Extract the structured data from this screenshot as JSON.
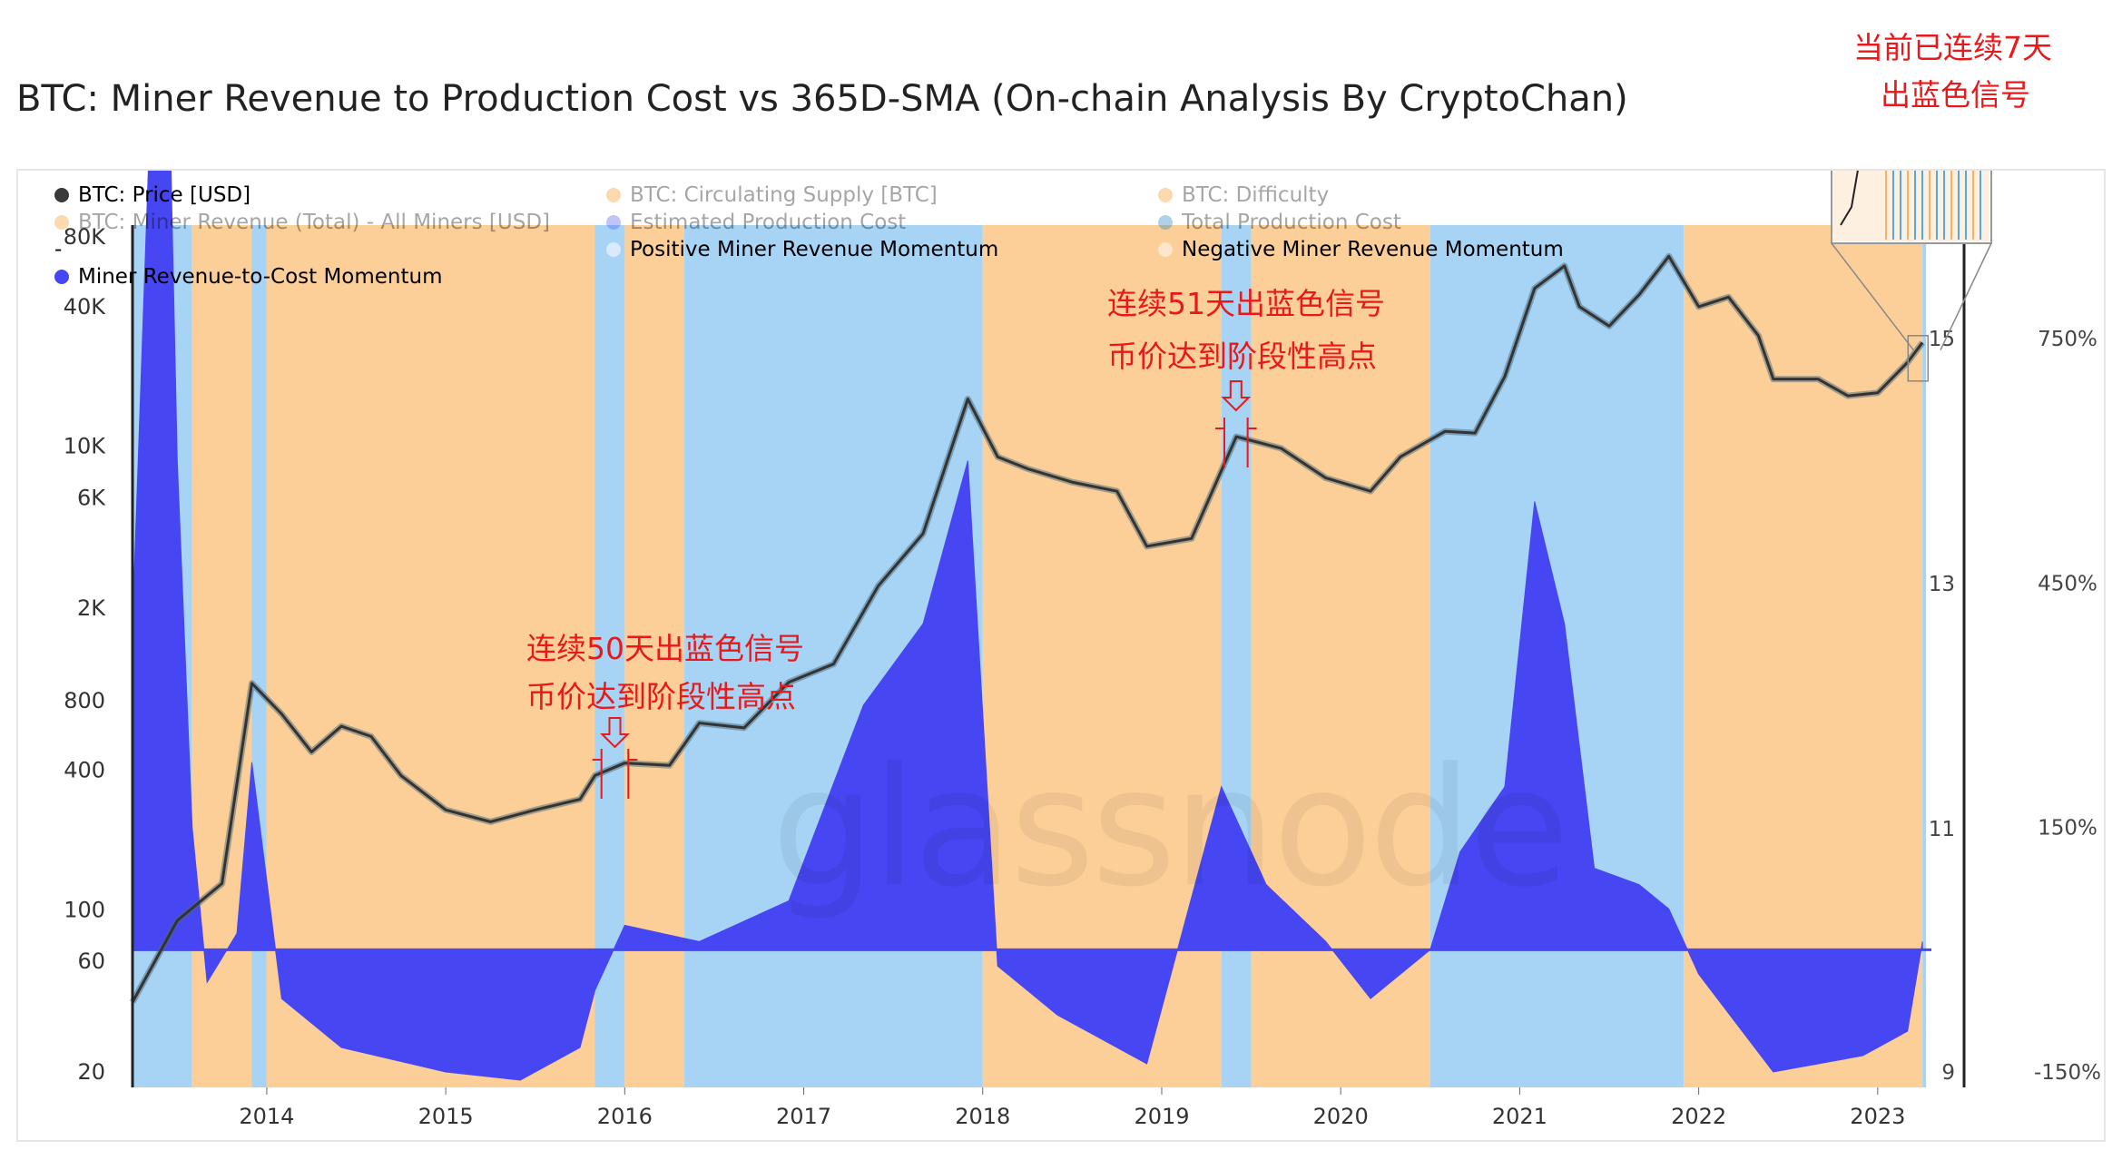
{
  "title": "BTC: Miner Revenue to Production Cost vs 365D-SMA (On-chain Analysis By CryptoChan)",
  "legend": [
    {
      "label": "BTC: Price [USD]",
      "color": "#3a3a3a",
      "dim": false
    },
    {
      "label": "BTC: Circulating Supply [BTC]",
      "color": "#f7931a",
      "dim": true
    },
    {
      "label": "BTC: Difficulty",
      "color": "#f7931a",
      "dim": true
    },
    {
      "label": "BTC: Miner Revenue (Total) - All Miners [USD]",
      "color": "#f7931a",
      "dim": true
    },
    {
      "label": "Estimated Production Cost",
      "color": "#4a5cf0",
      "dim": true
    },
    {
      "label": "Total Production Cost",
      "color": "#1a7fc1",
      "dim": true
    },
    {
      "label": "-",
      "color": "",
      "dim": false
    },
    {
      "label": "Positive Miner Revenue Momentum",
      "color": "#dbeafa",
      "dim": false
    },
    {
      "label": "Negative Miner Revenue Momentum",
      "color": "#fde6cc",
      "dim": false
    },
    {
      "label": "Miner Revenue-to-Cost Momentum",
      "color": "#4646f2",
      "dim": false
    }
  ],
  "annotations": {
    "a1_line1": "连续50天出蓝色信号",
    "a1_line2": "币价达到阶段性高点",
    "a2_line1": "连续51天出蓝色信号",
    "a2_line2": "币价达到阶段性高点",
    "a3_line1": "当前已连续7天",
    "a3_line2": "出蓝色信号"
  },
  "watermark": "glassnode",
  "colors": {
    "positive_band": "#a7d3f5",
    "negative_band": "#fccf98",
    "momentum": "#4646f2",
    "price": "#333333"
  },
  "chart_data": {
    "type": "line",
    "xlabel": "",
    "ylabel": "",
    "x_ticks": [
      "2014",
      "2015",
      "2016",
      "2017",
      "2018",
      "2019",
      "2020",
      "2021",
      "2022",
      "2023"
    ],
    "y_left_ticks": [
      "80K",
      "40K",
      "10K",
      "6K",
      "2K",
      "800",
      "400",
      "100",
      "60",
      "20"
    ],
    "y_left_tick_values": [
      80000,
      40000,
      10000,
      6000,
      2000,
      800,
      400,
      100,
      60,
      20
    ],
    "y_left_scale": "log",
    "y_mid_ticks": [
      "15",
      "13",
      "11",
      "9"
    ],
    "y_right_ticks": [
      "750%",
      "450%",
      "150%",
      "-150%"
    ],
    "y_right_tick_values": [
      750,
      450,
      150,
      -150
    ],
    "series": [
      {
        "name": "BTC: Price [USD]",
        "x": [
          "2013-04",
          "2013-07",
          "2013-10",
          "2013-12",
          "2014-02",
          "2014-04",
          "2014-06",
          "2014-08",
          "2014-10",
          "2015-01",
          "2015-04",
          "2015-07",
          "2015-10",
          "2015-11",
          "2016-01",
          "2016-04",
          "2016-06",
          "2016-09",
          "2016-12",
          "2017-03",
          "2017-06",
          "2017-09",
          "2017-12",
          "2018-02",
          "2018-04",
          "2018-07",
          "2018-10",
          "2018-12",
          "2019-03",
          "2019-06",
          "2019-09",
          "2019-12",
          "2020-03",
          "2020-05",
          "2020-08",
          "2020-10",
          "2020-12",
          "2021-02",
          "2021-04",
          "2021-05",
          "2021-07",
          "2021-09",
          "2021-11",
          "2022-01",
          "2022-03",
          "2022-05",
          "2022-06",
          "2022-09",
          "2022-11",
          "2023-01",
          "2023-03",
          "2023-04"
        ],
        "values": [
          40,
          90,
          130,
          950,
          700,
          480,
          620,
          560,
          380,
          270,
          240,
          270,
          300,
          380,
          430,
          420,
          640,
          610,
          960,
          1150,
          2500,
          4200,
          16000,
          9000,
          8000,
          7000,
          6400,
          3700,
          4000,
          11000,
          9800,
          7300,
          6400,
          9000,
          11600,
          11400,
          20000,
          48000,
          60000,
          40000,
          33000,
          45000,
          66000,
          40000,
          44000,
          30000,
          19500,
          19500,
          16500,
          17000,
          23000,
          28000
        ]
      },
      {
        "name": "Miner Revenue-to-Cost Momentum",
        "x": [
          "2013-04",
          "2013-06",
          "2013-07",
          "2013-08",
          "2013-09",
          "2013-11",
          "2013-12",
          "2014-02",
          "2014-06",
          "2015-01",
          "2015-06",
          "2015-10",
          "2015-11",
          "2016-01",
          "2016-06",
          "2016-12",
          "2017-05",
          "2017-09",
          "2017-12",
          "2018-02",
          "2018-06",
          "2018-12",
          "2019-05",
          "2019-08",
          "2019-12",
          "2020-03",
          "2020-07",
          "2020-09",
          "2020-12",
          "2021-02",
          "2021-04",
          "2021-06",
          "2021-09",
          "2021-11",
          "2022-01",
          "2022-06",
          "2022-12",
          "2023-03",
          "2023-04"
        ],
        "values": [
          400,
          1450,
          600,
          150,
          -40,
          20,
          230,
          -60,
          -120,
          -150,
          -160,
          -120,
          -50,
          30,
          10,
          60,
          300,
          400,
          600,
          -20,
          -80,
          -140,
          200,
          80,
          10,
          -60,
          0,
          120,
          200,
          550,
          400,
          100,
          80,
          50,
          -30,
          -150,
          -130,
          -100,
          10
        ]
      }
    ],
    "signal_bands": [
      {
        "type": "positive",
        "start": "2013-04",
        "end": "2013-08"
      },
      {
        "type": "negative",
        "start": "2013-08",
        "end": "2013-12"
      },
      {
        "type": "positive",
        "start": "2013-12",
        "end": "2014-01"
      },
      {
        "type": "negative",
        "start": "2014-01",
        "end": "2015-11"
      },
      {
        "type": "positive",
        "start": "2015-11",
        "end": "2016-01"
      },
      {
        "type": "negative",
        "start": "2016-01",
        "end": "2016-05"
      },
      {
        "type": "positive",
        "start": "2016-05",
        "end": "2018-01"
      },
      {
        "type": "negative",
        "start": "2018-01",
        "end": "2019-05"
      },
      {
        "type": "positive",
        "start": "2019-05",
        "end": "2019-07"
      },
      {
        "type": "negative",
        "start": "2019-07",
        "end": "2020-07"
      },
      {
        "type": "positive",
        "start": "2020-07",
        "end": "2021-12"
      },
      {
        "type": "negative",
        "start": "2021-12",
        "end": "2023-04"
      },
      {
        "type": "positive",
        "start": "2023-04",
        "end": "2023-04"
      }
    ],
    "grid": false,
    "legend_position": "top-left"
  }
}
